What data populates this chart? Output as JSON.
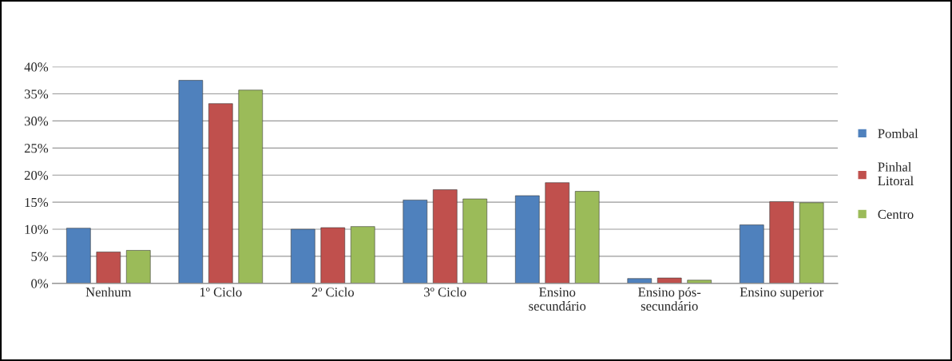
{
  "chart_data": {
    "type": "bar",
    "categories": [
      "Nenhum",
      "1º Ciclo",
      "2º Ciclo",
      "3º Ciclo",
      "Ensino\nsecundário",
      "Ensino pós-\nsecundário",
      "Ensino superior"
    ],
    "series": [
      {
        "name": "Pombal",
        "color": "#4f81bd",
        "values": [
          10.2,
          37.5,
          10.0,
          15.4,
          16.2,
          0.9,
          10.8
        ]
      },
      {
        "name": "Pinhal\nLitoral",
        "color": "#c0504d",
        "values": [
          5.8,
          33.2,
          10.3,
          17.3,
          18.6,
          1.0,
          15.1
        ]
      },
      {
        "name": "Centro",
        "color": "#9bbb59",
        "values": [
          6.1,
          35.7,
          10.5,
          15.6,
          17.0,
          0.6,
          14.9
        ]
      }
    ],
    "ylim": [
      0,
      40
    ],
    "yticks": [
      {
        "value": 0,
        "label": "0%"
      },
      {
        "value": 5,
        "label": "5%"
      },
      {
        "value": 10,
        "label": "10%"
      },
      {
        "value": 15,
        "label": "15%"
      },
      {
        "value": 20,
        "label": "20%"
      },
      {
        "value": 25,
        "label": "25%"
      },
      {
        "value": 30,
        "label": "30%"
      },
      {
        "value": 35,
        "label": "35%"
      },
      {
        "value": 40,
        "label": "40%"
      }
    ],
    "grid": "y",
    "legend": "right"
  }
}
